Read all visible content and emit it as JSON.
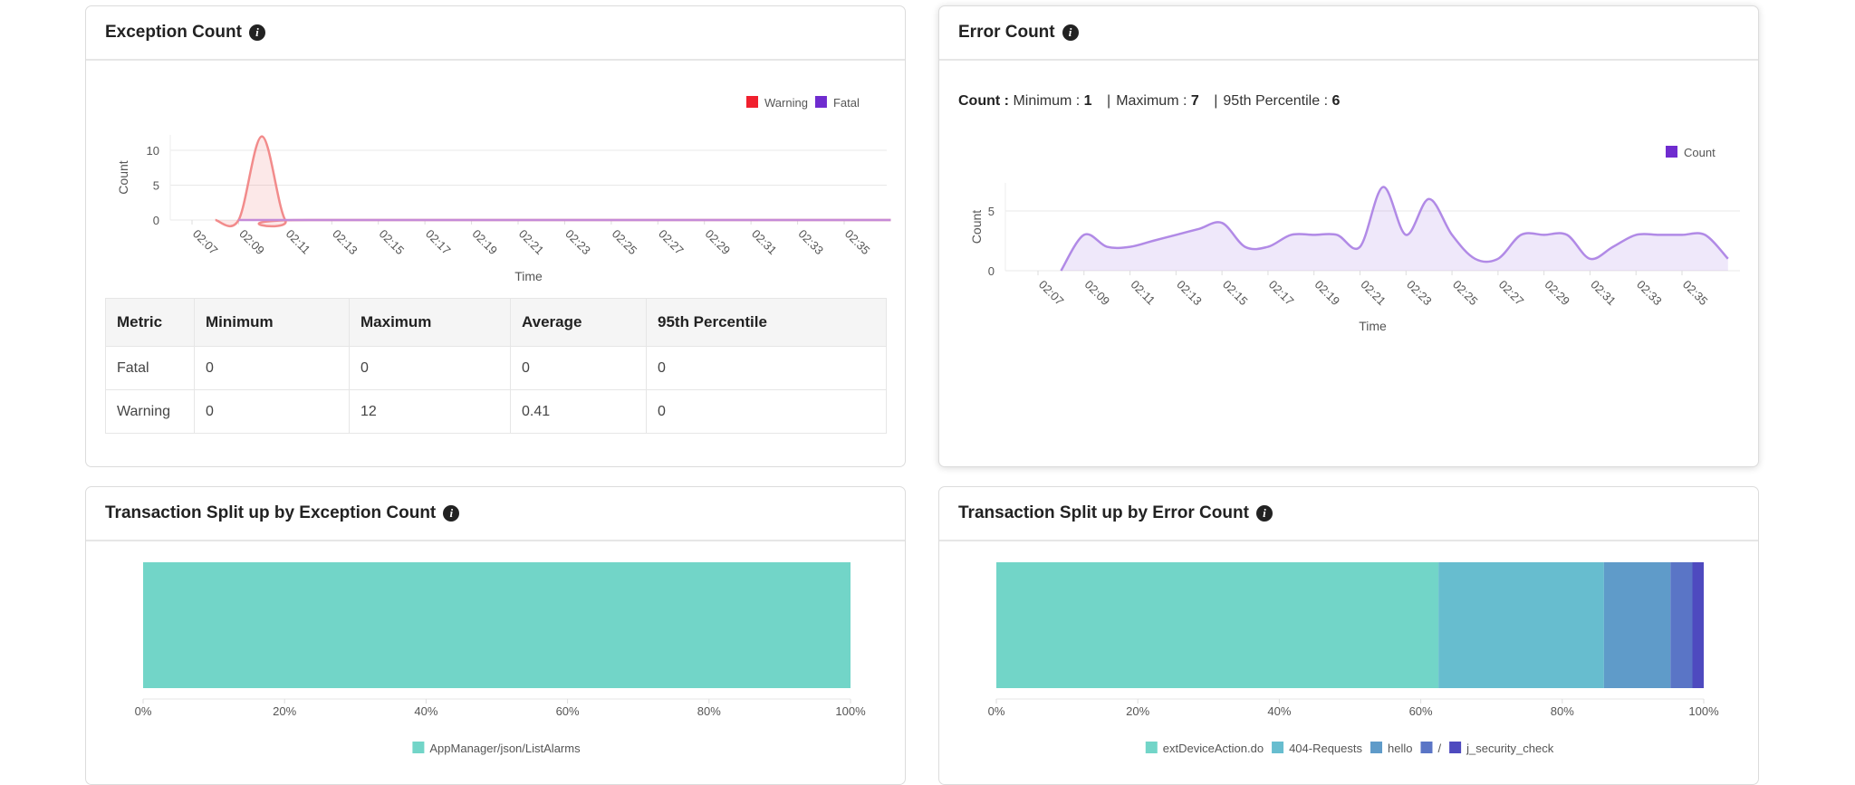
{
  "cards": {
    "exception": {
      "title": "Exception Count"
    },
    "error": {
      "title": "Error Count"
    },
    "split_exception": {
      "title": "Transaction Split up by Exception Count"
    },
    "split_error": {
      "title": "Transaction Split up by Error Count"
    }
  },
  "error_summary": {
    "label": "Count :",
    "min_label": "Minimum :",
    "min": "1",
    "max_label": "Maximum :",
    "max": "7",
    "p95_label": "95th Percentile :",
    "p95": "6"
  },
  "exception_table": {
    "headers": [
      "Metric",
      "Minimum",
      "Maximum",
      "Average",
      "95th Percentile"
    ],
    "rows": [
      [
        "Fatal",
        "0",
        "0",
        "0",
        "0"
      ],
      [
        "Warning",
        "0",
        "12",
        "0.41",
        "0"
      ]
    ]
  },
  "chart_data": [
    {
      "type": "area",
      "xlabel": "Time",
      "ylabel": "Count",
      "x_ticks": [
        "02:07",
        "02:09",
        "02:11",
        "02:13",
        "02:15",
        "02:17",
        "02:19",
        "02:21",
        "02:23",
        "02:25",
        "02:27",
        "02:29",
        "02:31",
        "02:33",
        "02:35"
      ],
      "y_ticks": [
        0,
        5,
        10
      ],
      "ylim": [
        0,
        12
      ],
      "grid": true,
      "legend": "top-right",
      "series": [
        {
          "name": "Warning",
          "color": "#f0202e",
          "line": "#f28b8b",
          "x": [
            "02:08",
            "02:09",
            "02:10",
            "02:11",
            "02:12",
            "02:37"
          ],
          "values": [
            0,
            0,
            12,
            0,
            0,
            0
          ]
        },
        {
          "name": "Fatal",
          "color": "#6f2ccf",
          "line": "#c58bd8",
          "x": [
            "02:09",
            "02:37"
          ],
          "values": [
            0,
            0
          ]
        }
      ]
    },
    {
      "type": "area",
      "xlabel": "Time",
      "ylabel": "Count",
      "x_ticks": [
        "02:07",
        "02:09",
        "02:11",
        "02:13",
        "02:15",
        "02:17",
        "02:19",
        "02:21",
        "02:23",
        "02:25",
        "02:27",
        "02:29",
        "02:31",
        "02:33",
        "02:35"
      ],
      "y_ticks": [
        0,
        5
      ],
      "ylim": [
        0,
        7.5
      ],
      "grid": true,
      "legend": "top-right",
      "series": [
        {
          "name": "Count",
          "color": "#6f2ccf",
          "line": "#b18ae6",
          "x": [
            "02:08",
            "02:09",
            "02:10",
            "02:11",
            "02:12",
            "02:13",
            "02:14",
            "02:15",
            "02:16",
            "02:17",
            "02:18",
            "02:19",
            "02:20",
            "02:21",
            "02:22",
            "02:23",
            "02:24",
            "02:25",
            "02:26",
            "02:27",
            "02:28",
            "02:29",
            "02:30",
            "02:31",
            "02:32",
            "02:33",
            "02:34",
            "02:35",
            "02:36",
            "02:37"
          ],
          "values": [
            0,
            3,
            2,
            2,
            2.5,
            3,
            3.5,
            4,
            2,
            2,
            3,
            3,
            3,
            2,
            7,
            3,
            6,
            3,
            1,
            1,
            3,
            3,
            3,
            1,
            2,
            3,
            3,
            3,
            3,
            1
          ]
        }
      ]
    },
    {
      "type": "bar",
      "orientation": "horizontal",
      "stacked": true,
      "x_ticks": [
        "0%",
        "20%",
        "40%",
        "60%",
        "80%",
        "100%"
      ],
      "legend": "bottom",
      "series": [
        {
          "name": "AppManager/json/ListAlarms",
          "value": 100,
          "color": "#72d5c8"
        }
      ]
    },
    {
      "type": "bar",
      "orientation": "horizontal",
      "stacked": true,
      "x_ticks": [
        "0%",
        "20%",
        "40%",
        "60%",
        "80%",
        "100%"
      ],
      "legend": "bottom",
      "series": [
        {
          "name": "extDeviceAction.do",
          "value": 62.5,
          "color": "#72d5c8"
        },
        {
          "name": "404-Requests",
          "value": 23.4,
          "color": "#67bdcf"
        },
        {
          "name": "hello",
          "value": 9.4,
          "color": "#5f9bc9"
        },
        {
          "name": "/",
          "value": 3.1,
          "color": "#5a75c6"
        },
        {
          "name": "j_security_check",
          "value": 1.6,
          "color": "#4e4abf"
        }
      ]
    }
  ]
}
